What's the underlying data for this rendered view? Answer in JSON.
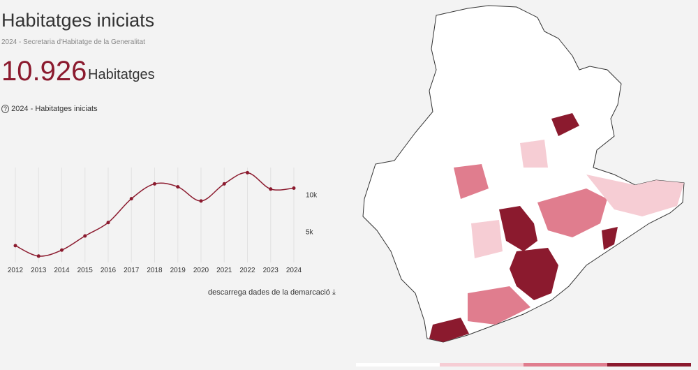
{
  "header": {
    "title": "Habitatges iniciats",
    "source": "2024 - Secretaria d'Habitatge de la Generalitat",
    "big_number": "10.926",
    "unit": "Habitatges",
    "chart_caption": "2024 - Habitatges iniciats",
    "download": "descarrega dades de la demarcació"
  },
  "chart_data": {
    "type": "line",
    "categories": [
      "2012",
      "2013",
      "2014",
      "2015",
      "2016",
      "2017",
      "2018",
      "2019",
      "2020",
      "2021",
      "2022",
      "2023",
      "2024"
    ],
    "values": [
      3200,
      1800,
      2600,
      4500,
      6300,
      9500,
      11500,
      11100,
      9200,
      11500,
      13000,
      10800,
      10926
    ],
    "color": "#8b1a2e",
    "ylim": [
      0,
      15000
    ],
    "yticks": [
      {
        "value": 5000,
        "label": "5k"
      },
      {
        "value": 10000,
        "label": "10k"
      }
    ],
    "grid": true
  }
}
